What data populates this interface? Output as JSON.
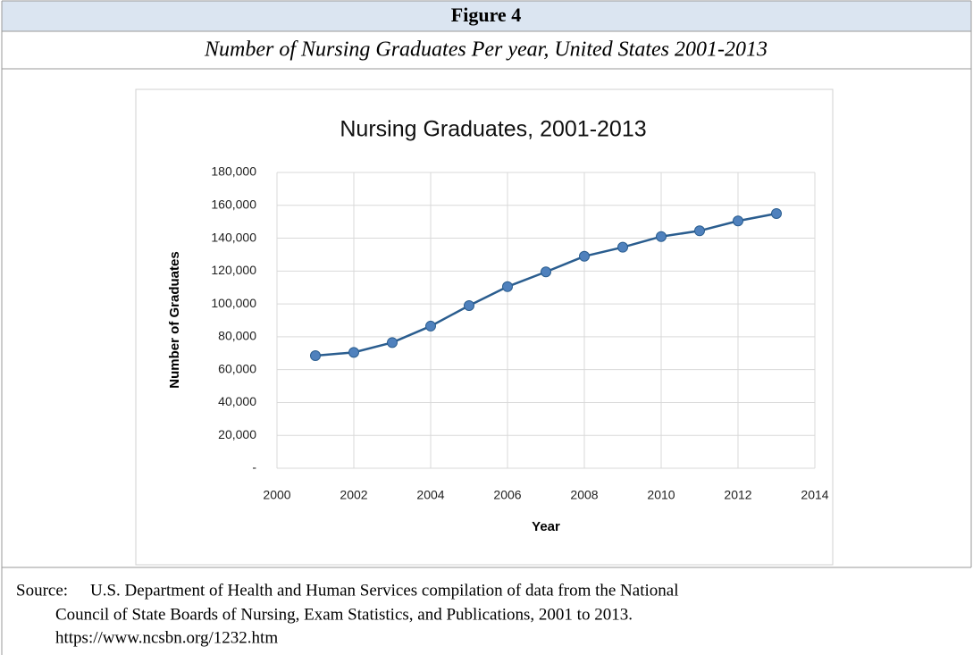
{
  "header": {
    "title": "Figure 4",
    "subtitle": "Number of Nursing Graduates Per year, United States 2001-2013"
  },
  "chart_data": {
    "type": "line",
    "title": "Nursing Graduates, 2001-2013",
    "x_label": "Year",
    "y_label": "Number of Graduates",
    "x": [
      2001,
      2002,
      2003,
      2004,
      2005,
      2006,
      2007,
      2008,
      2009,
      2010,
      2011,
      2012,
      2013
    ],
    "values": [
      68500,
      70500,
      76500,
      86500,
      99000,
      110500,
      119500,
      129000,
      134500,
      141000,
      144500,
      150500,
      155000
    ],
    "color": "#2a5d8f",
    "marker_color": "#4f81bd",
    "xlim": [
      2000,
      2014
    ],
    "xticks": [
      2000,
      2002,
      2004,
      2006,
      2008,
      2010,
      2012,
      2014
    ],
    "ylim": [
      0,
      180000
    ],
    "yticks": [
      {
        "value": 0,
        "label": "-"
      },
      {
        "value": 20000,
        "label": "20,000"
      },
      {
        "value": 40000,
        "label": "40,000"
      },
      {
        "value": 60000,
        "label": "60,000"
      },
      {
        "value": 80000,
        "label": "80,000"
      },
      {
        "value": 100000,
        "label": "100,000"
      },
      {
        "value": 120000,
        "label": "120,000"
      },
      {
        "value": 140000,
        "label": "140,000"
      },
      {
        "value": 160000,
        "label": "160,000"
      },
      {
        "value": 180000,
        "label": "180,000"
      }
    ],
    "grid": true
  },
  "source": {
    "label": "Source:",
    "lines": [
      "U.S. Department of Health and Human Services compilation of data from the National",
      "Council of State Boards of Nursing, Exam Statistics, and Publications, 2001 to 2013.",
      "https://www.ncsbn.org/1232.htm"
    ]
  }
}
